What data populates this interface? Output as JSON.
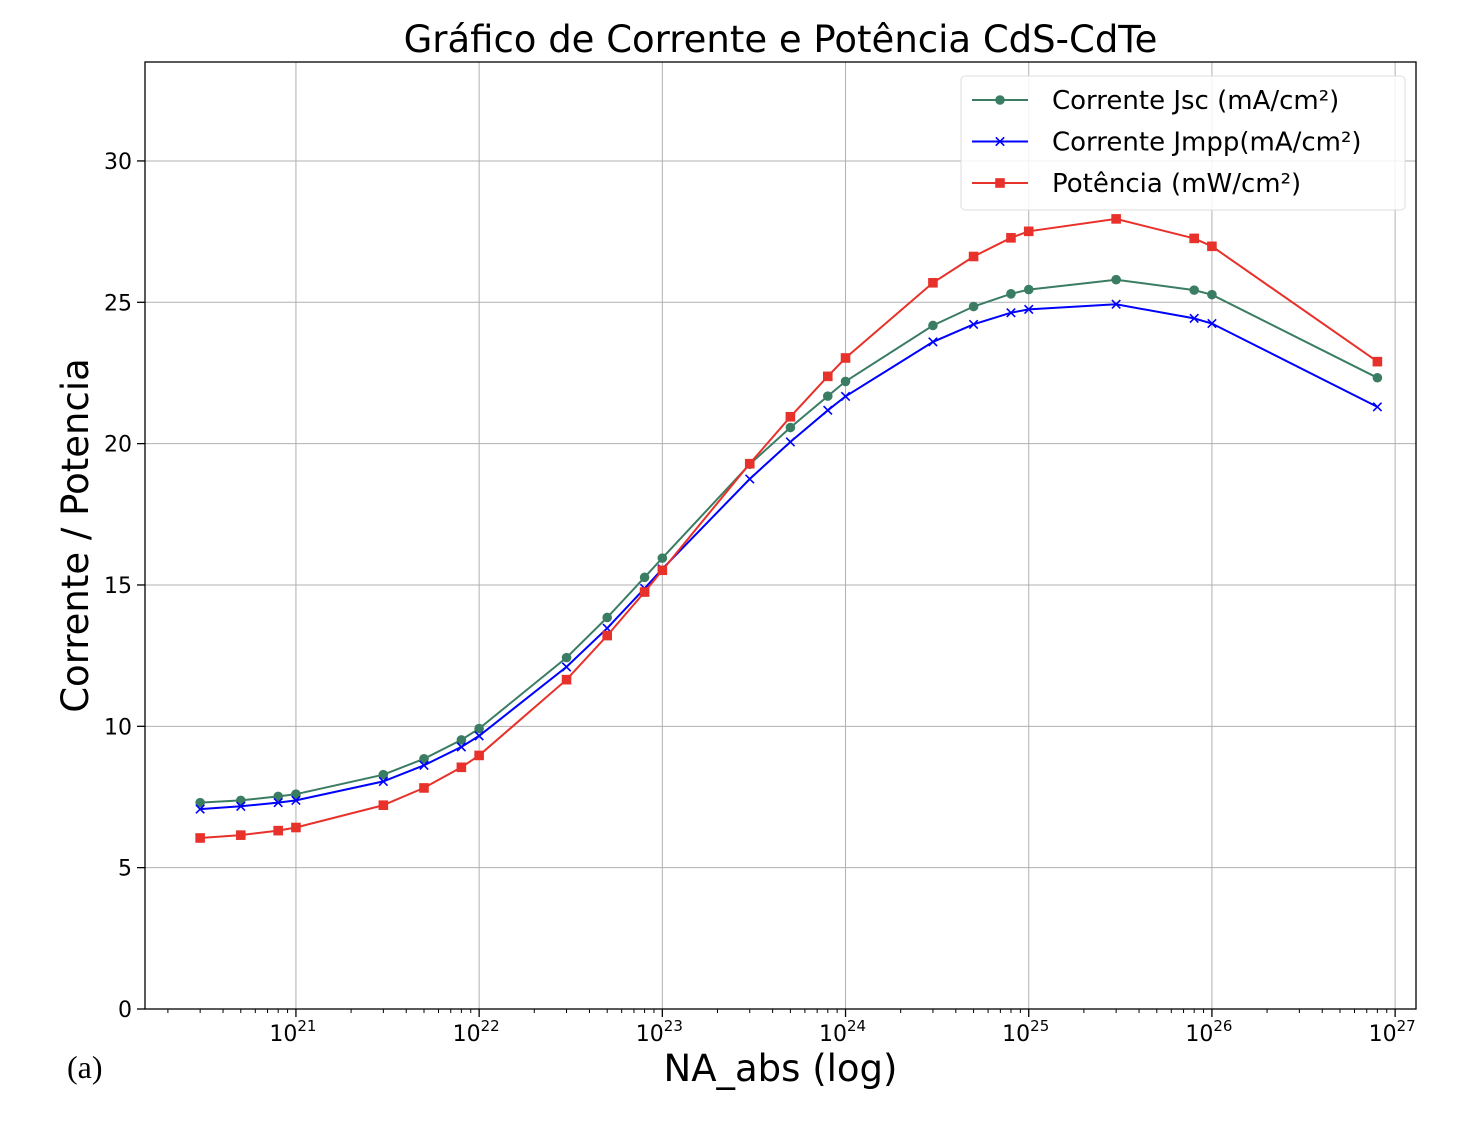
{
  "chart_data": {
    "type": "line",
    "title": "Gráfico de Corrente e Potência CdS-CdTe",
    "xlabel": "NA_abs (log)",
    "ylabel": "Corrente / Potencia",
    "panel_label": "(a)",
    "x_scale": "log",
    "xlim": [
      1.5e+20,
      1.3e+27
    ],
    "ylim": [
      0,
      33.5
    ],
    "grid": true,
    "legend_position": "top-right",
    "x_ticks": [
      {
        "value": 1e+21,
        "base": "10",
        "exp": "21"
      },
      {
        "value": 1e+22,
        "base": "10",
        "exp": "22"
      },
      {
        "value": 1e+23,
        "base": "10",
        "exp": "23"
      },
      {
        "value": 1e+24,
        "base": "10",
        "exp": "24"
      },
      {
        "value": 1e+25,
        "base": "10",
        "exp": "25"
      },
      {
        "value": 1e+26,
        "base": "10",
        "exp": "26"
      },
      {
        "value": 1e+27,
        "base": "10",
        "exp": "27"
      }
    ],
    "y_ticks": [
      0,
      5,
      10,
      15,
      20,
      25,
      30
    ],
    "x": [
      3e+20,
      5e+20,
      8e+20,
      1e+21,
      3e+21,
      5e+21,
      8e+21,
      1e+22,
      3e+22,
      5e+22,
      8e+22,
      1e+23,
      3e+23,
      5e+23,
      8e+23,
      1e+24,
      3e+24,
      5e+24,
      8e+24,
      1e+25,
      3e+25,
      8e+25,
      1e+26,
      8e+26
    ],
    "series": [
      {
        "name": "Corrente Jsc (mA/cm²)",
        "color": "#3a7d63",
        "marker": "circle",
        "values": [
          7.3,
          7.38,
          7.52,
          7.6,
          8.29,
          8.85,
          9.52,
          9.92,
          12.43,
          13.85,
          15.27,
          15.95,
          19.27,
          20.57,
          21.68,
          22.2,
          24.18,
          24.85,
          25.3,
          25.45,
          25.8,
          25.43,
          25.27,
          22.33
        ]
      },
      {
        "name": "Corrente Jmpp(mA/cm²)",
        "color": "#0000ff",
        "marker": "x",
        "values": [
          7.07,
          7.17,
          7.3,
          7.38,
          8.05,
          8.62,
          9.27,
          9.66,
          12.1,
          13.47,
          14.88,
          15.57,
          18.75,
          20.06,
          21.18,
          21.67,
          23.6,
          24.22,
          24.63,
          24.75,
          24.93,
          24.43,
          24.25,
          21.3
        ]
      },
      {
        "name": "Potência (mW/cm²)",
        "color": "#e8312a",
        "marker": "square",
        "values": [
          6.05,
          6.15,
          6.31,
          6.42,
          7.21,
          7.82,
          8.55,
          8.97,
          11.65,
          13.21,
          14.75,
          15.52,
          19.29,
          20.95,
          22.38,
          23.03,
          25.69,
          26.62,
          27.28,
          27.51,
          27.95,
          27.26,
          26.98,
          22.9
        ]
      }
    ]
  }
}
